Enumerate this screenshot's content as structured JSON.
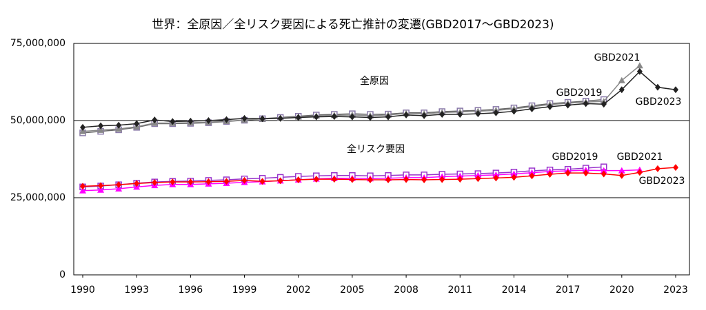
{
  "chart_data": {
    "type": "line",
    "title": "世界：全原因／全リスク要因による死亡推計の変遷(GBD2017～GBD2023)",
    "annotations": [
      "全原因",
      "全リスク要因"
    ],
    "x": [
      1990,
      1991,
      1992,
      1993,
      1994,
      1995,
      1996,
      1997,
      1998,
      1999,
      2000,
      2001,
      2002,
      2003,
      2004,
      2005,
      2006,
      2007,
      2008,
      2009,
      2010,
      2011,
      2012,
      2013,
      2014,
      2015,
      2016,
      2017,
      2018,
      2019,
      2020,
      2021,
      2022,
      2023
    ],
    "xlim": [
      1990,
      2023
    ],
    "xticks": [
      1990,
      1993,
      1996,
      1999,
      2002,
      2005,
      2008,
      2011,
      2014,
      2017,
      2020,
      2023
    ],
    "ylim": [
      0,
      75000000
    ],
    "yticks": [
      0,
      {
        "value": 25000000,
        "label": "25,000,000"
      },
      {
        "value": 50000000,
        "label": "50,000,000"
      },
      {
        "value": 75000000,
        "label": "75,000,000"
      }
    ],
    "grid": true,
    "series": [
      {
        "name": "GBD2019",
        "color": "#666666",
        "marker": "square-open",
        "marker_color": "#8878a8",
        "values": [
          46000000,
          46500000,
          47000000,
          47800000,
          49000000,
          49000000,
          49100000,
          49300000,
          49700000,
          50100000,
          50600000,
          51000000,
          51400000,
          51800000,
          52000000,
          52200000,
          52000000,
          52100000,
          52500000,
          52500000,
          52900000,
          53100000,
          53300000,
          53600000,
          54100000,
          54800000,
          55500000,
          55900000,
          56300000,
          56800000,
          null,
          null,
          null,
          null
        ]
      },
      {
        "name": "GBD2021",
        "color": "#888888",
        "marker": "triangle",
        "marker_color": "#888888",
        "values": [
          46500000,
          46900000,
          47300000,
          48000000,
          49200000,
          49200000,
          49300000,
          49500000,
          49800000,
          50200000,
          50500000,
          50800000,
          51200000,
          51500000,
          51700000,
          51800000,
          51600000,
          51800000,
          52300000,
          52200000,
          52600000,
          52800000,
          53000000,
          53300000,
          53800000,
          54500000,
          55200000,
          55600000,
          56000000,
          56200000,
          63000000,
          67800000,
          null,
          null
        ]
      },
      {
        "name": "GBD2023",
        "color": "#222222",
        "marker": "diamond",
        "marker_color": "#222222",
        "values": [
          47800000,
          48300000,
          48500000,
          49000000,
          50200000,
          49700000,
          49800000,
          50000000,
          50300000,
          50700000,
          50600000,
          50700000,
          51000000,
          51200000,
          51300000,
          51200000,
          51000000,
          51200000,
          51800000,
          51600000,
          52000000,
          52000000,
          52200000,
          52500000,
          53000000,
          53800000,
          54500000,
          55000000,
          55500000,
          55300000,
          60000000,
          65900000,
          60800000,
          60000000
        ]
      },
      {
        "name": "GBD2019",
        "color": "#9933cc",
        "marker": "square-open",
        "marker_color": "#9933cc",
        "values": [
          28500000,
          28800000,
          29200000,
          29700000,
          30100000,
          30300000,
          30400000,
          30600000,
          30800000,
          31100000,
          31300000,
          31600000,
          31900000,
          32100000,
          32200000,
          32200000,
          32100000,
          32200000,
          32400000,
          32400000,
          32600000,
          32700000,
          32800000,
          33000000,
          33300000,
          33700000,
          34000000,
          34200000,
          34600000,
          35000000,
          null,
          null,
          null,
          null
        ]
      },
      {
        "name": "GBD2021",
        "color": "#ff00ff",
        "marker": "triangle",
        "marker_color": "#ff00ff",
        "values": [
          27300000,
          27500000,
          27900000,
          28500000,
          29000000,
          29300000,
          29300000,
          29500000,
          29700000,
          30000000,
          30200000,
          30500000,
          30800000,
          31100000,
          31300000,
          31300000,
          31200000,
          31300000,
          31500000,
          31500000,
          31800000,
          32000000,
          32200000,
          32400000,
          32700000,
          33100000,
          33500000,
          33700000,
          33900000,
          33800000,
          33800000,
          34000000,
          null,
          null
        ]
      },
      {
        "name": "GBD2023",
        "color": "#ff0000",
        "marker": "diamond",
        "marker_color": "#ff0000",
        "values": [
          28700000,
          28900000,
          29200000,
          29600000,
          29900000,
          30100000,
          30100000,
          30200000,
          30300000,
          30600000,
          30300000,
          30500000,
          30800000,
          31000000,
          31000000,
          30900000,
          30800000,
          30800000,
          30900000,
          30800000,
          30900000,
          31000000,
          31200000,
          31400000,
          31600000,
          32100000,
          32600000,
          33000000,
          33000000,
          32700000,
          32200000,
          33200000,
          34400000,
          34800000
        ]
      }
    ]
  }
}
